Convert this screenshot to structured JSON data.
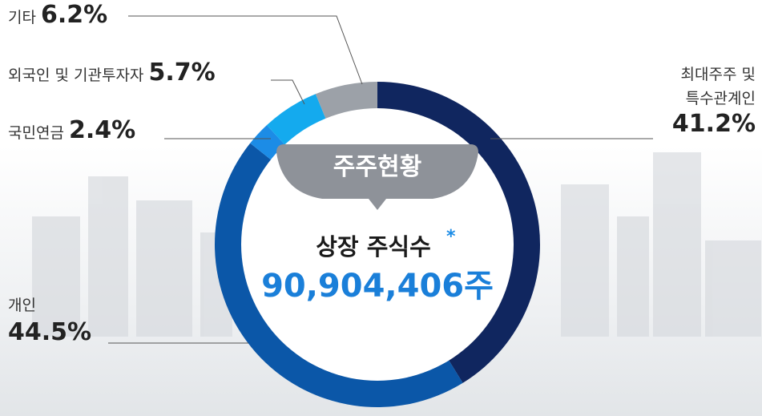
{
  "chart_data": {
    "type": "donut",
    "categories": [
      "최대주주 및 특수관계인",
      "개인",
      "국민연금",
      "외국인 및 기관투자자",
      "기타"
    ],
    "values": [
      41.2,
      44.5,
      2.4,
      5.7,
      6.2
    ],
    "value_labels": [
      "41.2%",
      "44.5%",
      "2.4%",
      "5.7%",
      "6.2%"
    ],
    "colors": [
      "#10265f",
      "#0b57a8",
      "#1c8ce6",
      "#14aaee",
      "#9ca1a8"
    ],
    "center": {
      "badge": "주주현황",
      "label": "상장 주식수",
      "mark": "*",
      "value": "90,904,406주"
    }
  }
}
